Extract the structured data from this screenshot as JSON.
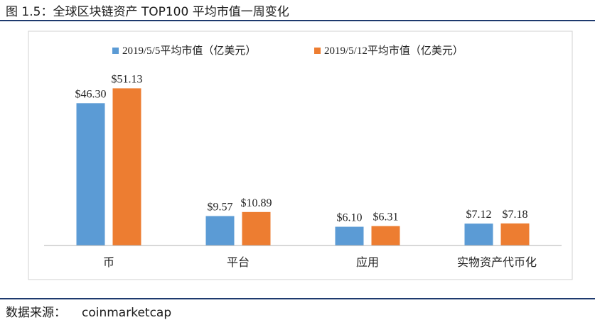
{
  "figure": {
    "title": "图 1.5：全球区块链资产 TOP100 平均市值一周变化",
    "source_label": "数据来源：",
    "source_value": "coinmarketcap"
  },
  "colors": {
    "series_1": "#5b9bd5",
    "series_2": "#ed7d31",
    "axis": "#b0b0b0",
    "rule": "#1e3a6e"
  },
  "chart_data": {
    "type": "bar",
    "title": "",
    "xlabel": "",
    "ylabel": "",
    "ylim": [
      0,
      60
    ],
    "grid": false,
    "legend_position": "top-center",
    "categories": [
      "币",
      "平台",
      "应用",
      "实物资产代币化"
    ],
    "series": [
      {
        "name": "2019/5/5平均市值（亿美元）",
        "values": [
          46.3,
          9.57,
          6.1,
          7.12
        ],
        "labels": [
          "$46.30",
          "$9.57",
          "$6.10",
          "$7.12"
        ]
      },
      {
        "name": "2019/5/12平均市值（亿美元）",
        "values": [
          51.13,
          10.89,
          6.31,
          7.18
        ],
        "labels": [
          "$51.13",
          "$10.89",
          "$6.31",
          "$7.18"
        ]
      }
    ]
  }
}
